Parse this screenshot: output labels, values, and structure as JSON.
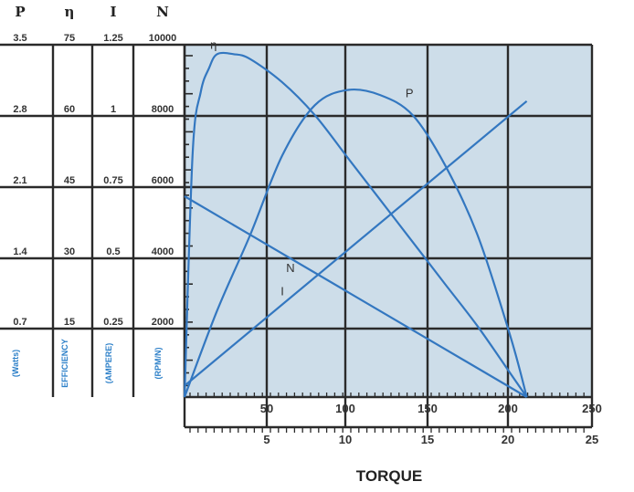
{
  "chart_data": {
    "type": "line",
    "title": "",
    "xlabel": "TORQUE",
    "colors": {
      "curve": "#3377c0",
      "plot_bg": "#cddde9",
      "grid": "#2a2a2a",
      "unit_text": "#2b7fc8"
    },
    "column_headers": [
      "P",
      "η",
      "I",
      "N"
    ],
    "scale_rows": [
      [
        "3.5",
        "75",
        "1.25",
        "10000"
      ],
      [
        "2.8",
        "60",
        "1",
        "8000"
      ],
      [
        "2.1",
        "45",
        "0.75",
        "6000"
      ],
      [
        "1.4",
        "30",
        "0.5",
        "4000"
      ],
      [
        "0.7",
        "15",
        "0.25",
        "2000"
      ]
    ],
    "unit_labels": [
      "(Watts)",
      "EFFICIENCY",
      "(AMPERE)",
      "(RPM/N)"
    ],
    "x_top_ticks": [
      "50",
      "100",
      "150",
      "200",
      "250"
    ],
    "x_bottom_ticks": [
      "5",
      "10",
      "15",
      "20",
      "25"
    ],
    "x_bottom_range": [
      0,
      25
    ],
    "grid": true,
    "series": [
      {
        "name": "η",
        "x": [
          0,
          0.5,
          1,
          1.5,
          2,
          3,
          4,
          6,
          8,
          10,
          12,
          14,
          16,
          18,
          20,
          21
        ],
        "y": [
          0,
          52,
          65,
          70,
          73,
          73,
          72,
          67,
          60,
          51,
          42,
          33,
          24,
          15,
          5,
          0
        ]
      },
      {
        "name": "P",
        "x": [
          0,
          2,
          4,
          6,
          8,
          10,
          12,
          14,
          16,
          18,
          20,
          21
        ],
        "y": [
          0,
          0.86,
          1.6,
          2.4,
          2.9,
          3.05,
          3.0,
          2.8,
          2.3,
          1.6,
          0.6,
          0
        ]
      },
      {
        "name": "I",
        "x": [
          0,
          21
        ],
        "y": [
          0.04,
          1.05
        ]
      },
      {
        "name": "N",
        "x": [
          0,
          21
        ],
        "y": [
          5700,
          0
        ]
      }
    ]
  }
}
